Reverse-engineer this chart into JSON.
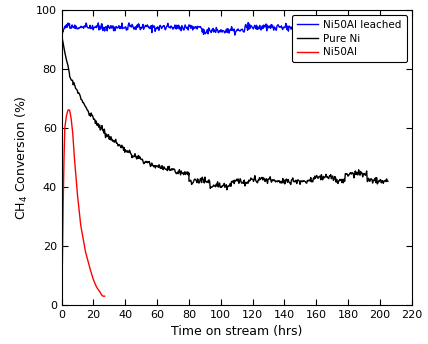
{
  "title": "",
  "xlabel": "Time on stream (hrs)",
  "ylabel": "CH$_4$ Conversion (%)",
  "xlim": [
    0,
    220
  ],
  "ylim": [
    0,
    100
  ],
  "xticks": [
    0,
    20,
    40,
    60,
    80,
    100,
    120,
    140,
    160,
    180,
    200,
    220
  ],
  "yticks": [
    0,
    20,
    40,
    60,
    80,
    100
  ],
  "legend": [
    "Ni50Al leached",
    "Pure Ni",
    "Ni50Al"
  ],
  "colors": {
    "Ni50Al_leached": "#0000FF",
    "Pure_Ni": "#000000",
    "Ni50Al": "#FF0000"
  },
  "linewidth": 1.0,
  "background_color": "#ffffff",
  "figsize": [
    4.28,
    3.44
  ],
  "dpi": 100
}
